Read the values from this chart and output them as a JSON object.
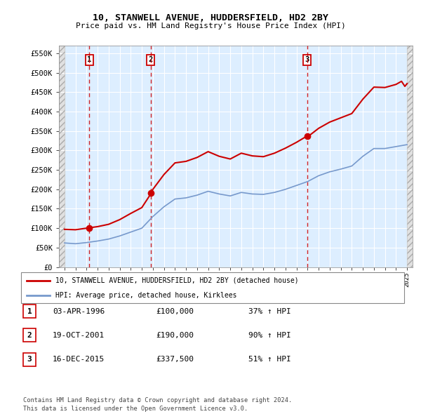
{
  "title1": "10, STANWELL AVENUE, HUDDERSFIELD, HD2 2BY",
  "title2": "Price paid vs. HM Land Registry's House Price Index (HPI)",
  "ylabel_ticks": [
    "£0",
    "£50K",
    "£100K",
    "£150K",
    "£200K",
    "£250K",
    "£300K",
    "£350K",
    "£400K",
    "£450K",
    "£500K",
    "£550K"
  ],
  "ylabel_values": [
    0,
    50000,
    100000,
    150000,
    200000,
    250000,
    300000,
    350000,
    400000,
    450000,
    500000,
    550000
  ],
  "xlim_start": 1993.5,
  "xlim_end": 2025.5,
  "ylim_min": 0,
  "ylim_max": 570000,
  "sale1_date": 1996.25,
  "sale1_price": 100000,
  "sale1_label": "1",
  "sale2_date": 2001.8,
  "sale2_price": 190000,
  "sale2_label": "2",
  "sale3_date": 2015.96,
  "sale3_price": 337500,
  "sale3_label": "3",
  "legend_line1": "10, STANWELL AVENUE, HUDDERSFIELD, HD2 2BY (detached house)",
  "legend_line2": "HPI: Average price, detached house, Kirklees",
  "table_rows": [
    {
      "num": "1",
      "date": "03-APR-1996",
      "price": "£100,000",
      "change": "37% ↑ HPI"
    },
    {
      "num": "2",
      "date": "19-OCT-2001",
      "price": "£190,000",
      "change": "90% ↑ HPI"
    },
    {
      "num": "3",
      "date": "16-DEC-2015",
      "price": "£337,500",
      "change": "51% ↑ HPI"
    }
  ],
  "footer": "Contains HM Land Registry data © Crown copyright and database right 2024.\nThis data is licensed under the Open Government Licence v3.0.",
  "plot_bg": "#ddeeff",
  "hatch_bg": "#e0e0e0",
  "red_line_color": "#cc0000",
  "blue_line_color": "#7799cc",
  "sale_dot_color": "#cc0000",
  "vline_color": "#cc0000",
  "box_color": "#cc0000",
  "hpi_kirklees": [
    [
      1994,
      62000
    ],
    [
      1995,
      60000
    ],
    [
      1996,
      63000
    ],
    [
      1997,
      67000
    ],
    [
      1998,
      72000
    ],
    [
      1999,
      80000
    ],
    [
      2000,
      90000
    ],
    [
      2001,
      100000
    ],
    [
      2002,
      130000
    ],
    [
      2003,
      155000
    ],
    [
      2004,
      175000
    ],
    [
      2005,
      178000
    ],
    [
      2006,
      185000
    ],
    [
      2007,
      195000
    ],
    [
      2008,
      188000
    ],
    [
      2009,
      183000
    ],
    [
      2010,
      192000
    ],
    [
      2011,
      188000
    ],
    [
      2012,
      187000
    ],
    [
      2013,
      192000
    ],
    [
      2014,
      200000
    ],
    [
      2015,
      210000
    ],
    [
      2016,
      220000
    ],
    [
      2017,
      235000
    ],
    [
      2018,
      245000
    ],
    [
      2019,
      252000
    ],
    [
      2020,
      260000
    ],
    [
      2021,
      285000
    ],
    [
      2022,
      305000
    ],
    [
      2023,
      305000
    ],
    [
      2024,
      310000
    ],
    [
      2025,
      315000
    ]
  ],
  "house_hpi": [
    [
      1994,
      97000
    ],
    [
      1995,
      96000
    ],
    [
      1996,
      100000
    ],
    [
      1997,
      104000
    ],
    [
      1998,
      110000
    ],
    [
      1999,
      122000
    ],
    [
      2000,
      138000
    ],
    [
      2001,
      153000
    ],
    [
      2001.85,
      190000
    ],
    [
      2002,
      200000
    ],
    [
      2003,
      238000
    ],
    [
      2004,
      268000
    ],
    [
      2005,
      272000
    ],
    [
      2006,
      282000
    ],
    [
      2007,
      297000
    ],
    [
      2008,
      285000
    ],
    [
      2009,
      278000
    ],
    [
      2010,
      293000
    ],
    [
      2011,
      286000
    ],
    [
      2012,
      284000
    ],
    [
      2013,
      293000
    ],
    [
      2014,
      306000
    ],
    [
      2015,
      321000
    ],
    [
      2015.97,
      337500
    ],
    [
      2016,
      335000
    ],
    [
      2017,
      357000
    ],
    [
      2018,
      373000
    ],
    [
      2019,
      384000
    ],
    [
      2020,
      395000
    ],
    [
      2021,
      432000
    ],
    [
      2022,
      463000
    ],
    [
      2023,
      462000
    ],
    [
      2024,
      470000
    ],
    [
      2024.5,
      478000
    ],
    [
      2024.8,
      465000
    ],
    [
      2025,
      472000
    ]
  ]
}
